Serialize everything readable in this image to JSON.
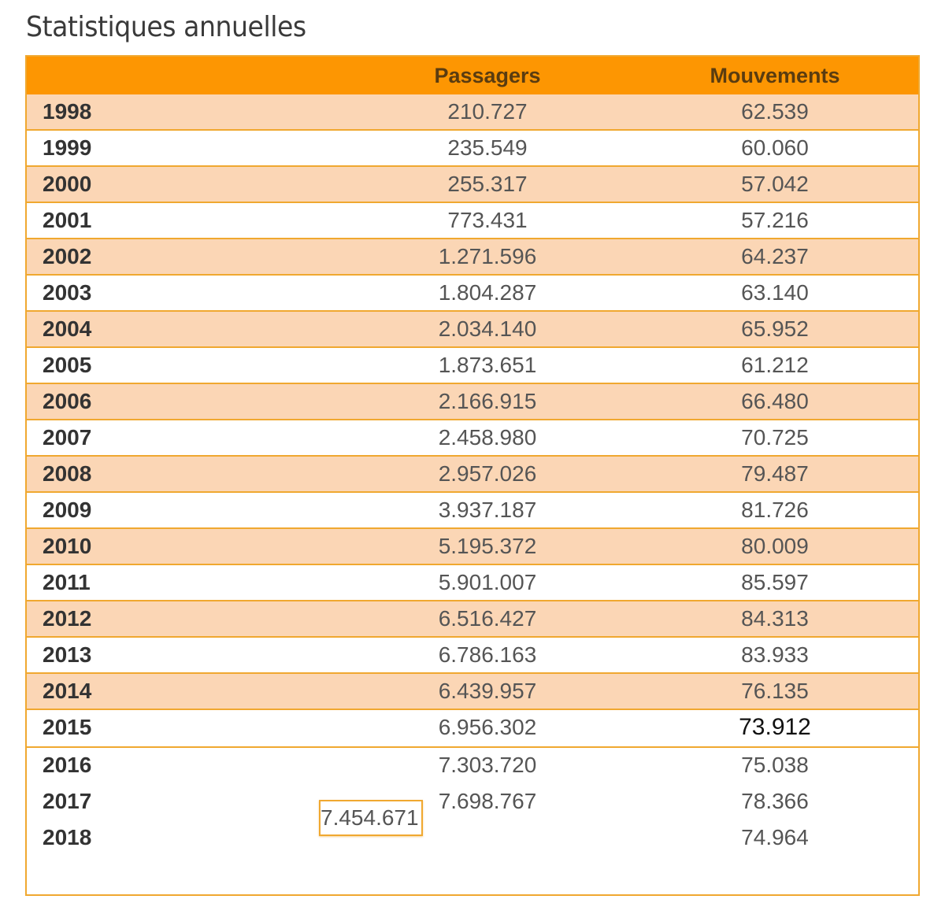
{
  "title": "Statistiques annuelles",
  "table": {
    "headers": {
      "year": "",
      "passengers": "Passagers",
      "movements": "Mouvements"
    },
    "rows": [
      {
        "year": "1998",
        "passengers": "210.727",
        "movements": "62.539"
      },
      {
        "year": "1999",
        "passengers": "235.549",
        "movements": "60.060"
      },
      {
        "year": "2000",
        "passengers": "255.317",
        "movements": "57.042"
      },
      {
        "year": "2001",
        "passengers": "773.431",
        "movements": "57.216"
      },
      {
        "year": "2002",
        "passengers": "1.271.596",
        "movements": "64.237"
      },
      {
        "year": "2003",
        "passengers": "1.804.287",
        "movements": "63.140"
      },
      {
        "year": "2004",
        "passengers": "2.034.140",
        "movements": "65.952"
      },
      {
        "year": "2005",
        "passengers": "1.873.651",
        "movements": "61.212"
      },
      {
        "year": "2006",
        "passengers": "2.166.915",
        "movements": "66.480"
      },
      {
        "year": "2007",
        "passengers": "2.458.980",
        "movements": "70.725"
      },
      {
        "year": "2008",
        "passengers": "2.957.026",
        "movements": "79.487"
      },
      {
        "year": "2009",
        "passengers": "3.937.187",
        "movements": "81.726"
      },
      {
        "year": "2010",
        "passengers": "5.195.372",
        "movements": "80.009"
      },
      {
        "year": "2011",
        "passengers": "5.901.007",
        "movements": "85.597"
      },
      {
        "year": "2012",
        "passengers": "6.516.427",
        "movements": "84.313"
      },
      {
        "year": "2013",
        "passengers": "6.786.163",
        "movements": "83.933"
      },
      {
        "year": "2014",
        "passengers": "6.439.957",
        "movements": "76.135"
      },
      {
        "year": "2015",
        "passengers": "6.956.302",
        "movements": "73.912"
      },
      {
        "year": "2016",
        "passengers": "7.303.720",
        "movements": "75.038"
      },
      {
        "year": "2017",
        "passengers": "7.698.767",
        "movements": "78.366"
      },
      {
        "year": "2018",
        "passengers": "7.454.671",
        "movements": "74.964"
      }
    ]
  },
  "colors": {
    "header_bg": "#fd9602",
    "odd_row_bg": "#fbd6b5",
    "even_row_bg": "#ffffff",
    "border": "#f0a830"
  }
}
